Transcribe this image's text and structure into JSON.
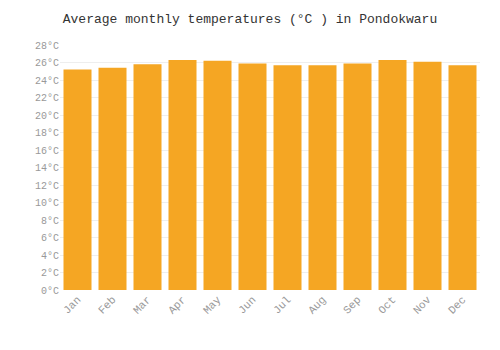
{
  "chart_data": {
    "type": "bar",
    "title": "Average monthly temperatures (°C ) in Pondokwaru",
    "categories": [
      "Jan",
      "Feb",
      "Mar",
      "Apr",
      "May",
      "Jun",
      "Jul",
      "Aug",
      "Sep",
      "Oct",
      "Nov",
      "Dec"
    ],
    "values": [
      25.2,
      25.4,
      25.8,
      26.3,
      26.2,
      25.9,
      25.7,
      25.7,
      25.9,
      26.3,
      26.1,
      25.7
    ],
    "color": "#F5A623",
    "ylim": [
      0,
      28
    ],
    "yticks": [
      {
        "value": 0,
        "label": "0°C"
      },
      {
        "value": 2,
        "label": "2°C"
      },
      {
        "value": 4,
        "label": "4°C"
      },
      {
        "value": 6,
        "label": "6°C"
      },
      {
        "value": 8,
        "label": "8°C"
      },
      {
        "value": 10,
        "label": "10°C"
      },
      {
        "value": 12,
        "label": "12°C"
      },
      {
        "value": 14,
        "label": "14°C"
      },
      {
        "value": 16,
        "label": "16°C"
      },
      {
        "value": 18,
        "label": "18°C"
      },
      {
        "value": 20,
        "label": "20°C"
      },
      {
        "value": 22,
        "label": "22°C"
      },
      {
        "value": 24,
        "label": "24°C"
      },
      {
        "value": 26,
        "label": "26°C"
      },
      {
        "value": 28,
        "label": "28°C"
      }
    ],
    "grid": true
  }
}
